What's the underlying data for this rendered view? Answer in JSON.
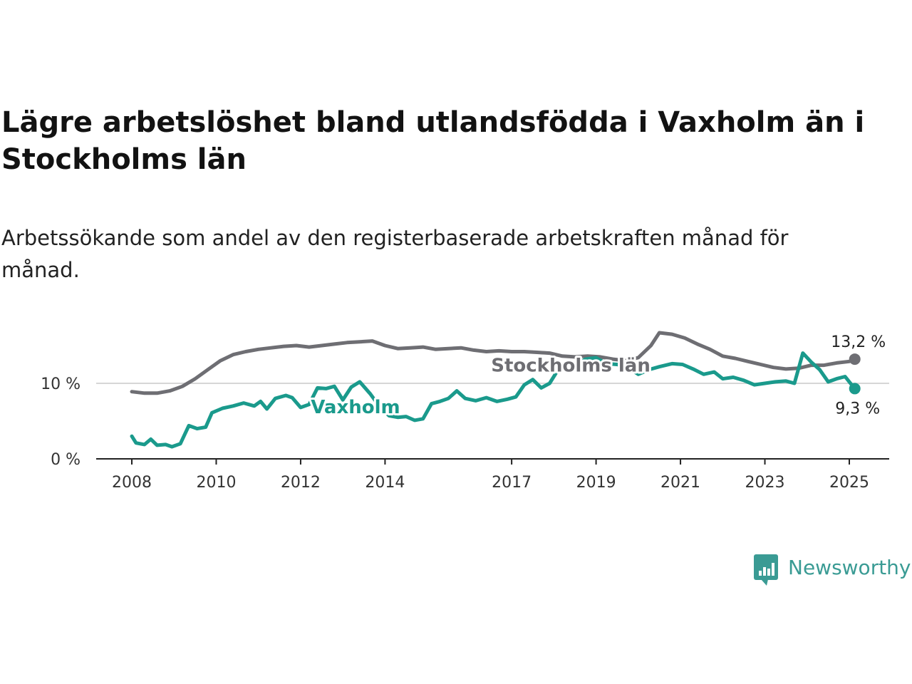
{
  "title": "Lägre arbetslöshet bland utlandsfödda i Vaxholm än i Stockholms län",
  "subtitle": "Arbetssökande som andel av den registerbaserade arbetskraften månad för månad.",
  "brand": {
    "name": "Newsworthy",
    "color": "#3a9b94",
    "icon": "bar-chart-speech-bubble-icon"
  },
  "chart_data": {
    "type": "line",
    "x_unit": "year",
    "xlim": [
      2007.85,
      2025.95
    ],
    "ylim": [
      0,
      16.5
    ],
    "x_ticks": [
      {
        "value": 2008,
        "label": "2008"
      },
      {
        "value": 2010,
        "label": "2010"
      },
      {
        "value": 2012,
        "label": "2012"
      },
      {
        "value": 2014,
        "label": "2014"
      },
      {
        "value": 2017,
        "label": "2017"
      },
      {
        "value": 2019,
        "label": "2019"
      },
      {
        "value": 2021,
        "label": "2021"
      },
      {
        "value": 2023,
        "label": "2023"
      },
      {
        "value": 2025,
        "label": "2025"
      }
    ],
    "y_ticks": [
      {
        "value": 0,
        "label": "0 %"
      },
      {
        "value": 10,
        "label": "10 %"
      }
    ],
    "grid": "horizontal",
    "series": [
      {
        "name": "Stockholms län",
        "color": "#6e6e73",
        "end_label": "13,2 %",
        "label_at": [
          2018.4,
          12.4
        ],
        "points": [
          [
            2008.0,
            8.9
          ],
          [
            2008.3,
            8.7
          ],
          [
            2008.6,
            8.7
          ],
          [
            2008.9,
            9.0
          ],
          [
            2009.2,
            9.6
          ],
          [
            2009.5,
            10.6
          ],
          [
            2009.8,
            11.8
          ],
          [
            2010.1,
            13.0
          ],
          [
            2010.4,
            13.8
          ],
          [
            2010.7,
            14.2
          ],
          [
            2011.0,
            14.5
          ],
          [
            2011.3,
            14.7
          ],
          [
            2011.6,
            14.9
          ],
          [
            2011.9,
            15.0
          ],
          [
            2012.2,
            14.8
          ],
          [
            2012.5,
            15.0
          ],
          [
            2012.8,
            15.2
          ],
          [
            2013.1,
            15.4
          ],
          [
            2013.4,
            15.5
          ],
          [
            2013.7,
            15.6
          ],
          [
            2014.0,
            15.0
          ],
          [
            2014.3,
            14.6
          ],
          [
            2014.6,
            14.7
          ],
          [
            2014.9,
            14.8
          ],
          [
            2015.2,
            14.5
          ],
          [
            2015.5,
            14.6
          ],
          [
            2015.8,
            14.7
          ],
          [
            2016.1,
            14.4
          ],
          [
            2016.4,
            14.2
          ],
          [
            2016.7,
            14.3
          ],
          [
            2017.0,
            14.2
          ],
          [
            2017.3,
            14.2
          ],
          [
            2017.6,
            14.1
          ],
          [
            2017.9,
            14.0
          ],
          [
            2018.2,
            13.6
          ],
          [
            2018.5,
            13.5
          ],
          [
            2018.8,
            13.6
          ],
          [
            2019.1,
            13.5
          ],
          [
            2019.4,
            13.2
          ],
          [
            2019.7,
            13.0
          ],
          [
            2020.0,
            13.4
          ],
          [
            2020.3,
            15.0
          ],
          [
            2020.5,
            16.7
          ],
          [
            2020.8,
            16.5
          ],
          [
            2021.1,
            16.0
          ],
          [
            2021.4,
            15.2
          ],
          [
            2021.7,
            14.5
          ],
          [
            2022.0,
            13.6
          ],
          [
            2022.3,
            13.3
          ],
          [
            2022.6,
            12.9
          ],
          [
            2022.9,
            12.5
          ],
          [
            2023.2,
            12.1
          ],
          [
            2023.5,
            11.9
          ],
          [
            2023.8,
            12.0
          ],
          [
            2024.1,
            12.4
          ],
          [
            2024.4,
            12.4
          ],
          [
            2024.7,
            12.7
          ],
          [
            2025.0,
            12.9
          ],
          [
            2025.13,
            13.2
          ]
        ]
      },
      {
        "name": "Vaxholm",
        "color": "#1a9a8c",
        "end_label": "9,3 %",
        "label_at": [
          2013.3,
          6.9
        ],
        "points": [
          [
            2008.0,
            3.0
          ],
          [
            2008.1,
            2.1
          ],
          [
            2008.3,
            1.9
          ],
          [
            2008.45,
            2.6
          ],
          [
            2008.6,
            1.8
          ],
          [
            2008.8,
            1.9
          ],
          [
            2008.95,
            1.6
          ],
          [
            2009.15,
            2.0
          ],
          [
            2009.35,
            4.4
          ],
          [
            2009.55,
            4.0
          ],
          [
            2009.75,
            4.2
          ],
          [
            2009.9,
            6.1
          ],
          [
            2010.15,
            6.7
          ],
          [
            2010.4,
            7.0
          ],
          [
            2010.65,
            7.4
          ],
          [
            2010.9,
            7.0
          ],
          [
            2011.05,
            7.6
          ],
          [
            2011.2,
            6.6
          ],
          [
            2011.4,
            8.0
          ],
          [
            2011.65,
            8.4
          ],
          [
            2011.8,
            8.1
          ],
          [
            2012.0,
            6.8
          ],
          [
            2012.2,
            7.2
          ],
          [
            2012.4,
            9.4
          ],
          [
            2012.6,
            9.3
          ],
          [
            2012.8,
            9.6
          ],
          [
            2013.0,
            7.8
          ],
          [
            2013.2,
            9.5
          ],
          [
            2013.4,
            10.2
          ],
          [
            2013.65,
            8.6
          ],
          [
            2013.9,
            6.7
          ],
          [
            2014.1,
            5.7
          ],
          [
            2014.3,
            5.5
          ],
          [
            2014.5,
            5.6
          ],
          [
            2014.7,
            5.1
          ],
          [
            2014.9,
            5.3
          ],
          [
            2015.1,
            7.3
          ],
          [
            2015.3,
            7.6
          ],
          [
            2015.5,
            8.0
          ],
          [
            2015.7,
            9.0
          ],
          [
            2015.9,
            8.0
          ],
          [
            2016.15,
            7.7
          ],
          [
            2016.4,
            8.1
          ],
          [
            2016.65,
            7.6
          ],
          [
            2016.9,
            7.9
          ],
          [
            2017.1,
            8.2
          ],
          [
            2017.3,
            9.8
          ],
          [
            2017.5,
            10.5
          ],
          [
            2017.7,
            9.4
          ],
          [
            2017.9,
            10.0
          ],
          [
            2018.1,
            11.8
          ],
          [
            2018.35,
            12.7
          ],
          [
            2018.55,
            12.6
          ],
          [
            2018.75,
            13.2
          ],
          [
            2019.0,
            13.4
          ],
          [
            2019.25,
            12.6
          ],
          [
            2019.5,
            12.5
          ],
          [
            2019.75,
            12.1
          ],
          [
            2020.0,
            11.2
          ],
          [
            2020.25,
            11.8
          ],
          [
            2020.5,
            12.2
          ],
          [
            2020.8,
            12.6
          ],
          [
            2021.05,
            12.5
          ],
          [
            2021.3,
            11.9
          ],
          [
            2021.55,
            11.2
          ],
          [
            2021.8,
            11.5
          ],
          [
            2022.0,
            10.6
          ],
          [
            2022.25,
            10.8
          ],
          [
            2022.5,
            10.4
          ],
          [
            2022.75,
            9.8
          ],
          [
            2023.0,
            10.0
          ],
          [
            2023.25,
            10.2
          ],
          [
            2023.5,
            10.3
          ],
          [
            2023.7,
            10.0
          ],
          [
            2023.9,
            14.0
          ],
          [
            2024.1,
            12.8
          ],
          [
            2024.3,
            11.8
          ],
          [
            2024.5,
            10.2
          ],
          [
            2024.7,
            10.6
          ],
          [
            2024.9,
            10.9
          ],
          [
            2025.0,
            10.2
          ],
          [
            2025.13,
            9.3
          ]
        ]
      }
    ]
  }
}
